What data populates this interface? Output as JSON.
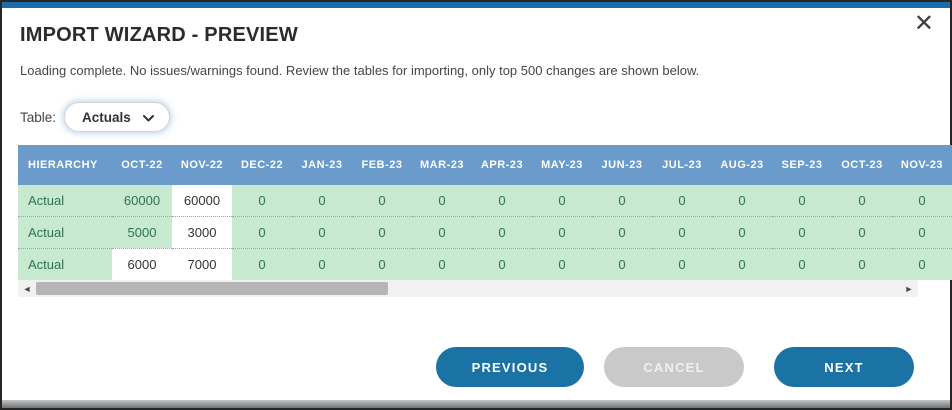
{
  "dialog": {
    "title": "IMPORT WIZARD - PREVIEW",
    "message": "Loading complete. No issues/warnings found. Review the tables for importing, only top 500 changes are shown below.",
    "close_icon": "✕"
  },
  "table_selector": {
    "label": "Table:",
    "value": "Actuals"
  },
  "preview_table": {
    "columns": [
      "HIERARCHY",
      "OCT-22",
      "NOV-22",
      "DEC-22",
      "JAN-23",
      "FEB-23",
      "MAR-23",
      "APR-23",
      "MAY-23",
      "JUN-23",
      "JUL-23",
      "AUG-23",
      "SEP-23",
      "OCT-23",
      "NOV-23"
    ],
    "rows": [
      {
        "hierarchy": "Actual",
        "values": [
          "60000",
          "60000",
          "0",
          "0",
          "0",
          "0",
          "0",
          "0",
          "0",
          "0",
          "0",
          "0",
          "0",
          "0"
        ],
        "changed_cols": [
          1
        ]
      },
      {
        "hierarchy": "Actual",
        "values": [
          "5000",
          "3000",
          "0",
          "0",
          "0",
          "0",
          "0",
          "0",
          "0",
          "0",
          "0",
          "0",
          "0",
          "0"
        ],
        "changed_cols": [
          1
        ]
      },
      {
        "hierarchy": "Actual",
        "values": [
          "6000",
          "7000",
          "0",
          "0",
          "0",
          "0",
          "0",
          "0",
          "0",
          "0",
          "0",
          "0",
          "0",
          "0"
        ],
        "changed_cols": [
          0,
          1
        ]
      }
    ]
  },
  "scrollbar": {
    "left_arrow": "◄",
    "right_arrow": "►"
  },
  "buttons": {
    "previous": "PREVIOUS",
    "cancel": "CANCEL",
    "next": "NEXT"
  },
  "colors": {
    "accent_bar": "#1b6ca8",
    "table_header": "#6a9bcb",
    "cell_green_bg": "#c7e9cf",
    "cell_green_text": "#2f7156",
    "changed_cell_bg": "#ffffff",
    "button_blue": "#1a72a5",
    "cancel_gray": "#c9c9c9"
  }
}
